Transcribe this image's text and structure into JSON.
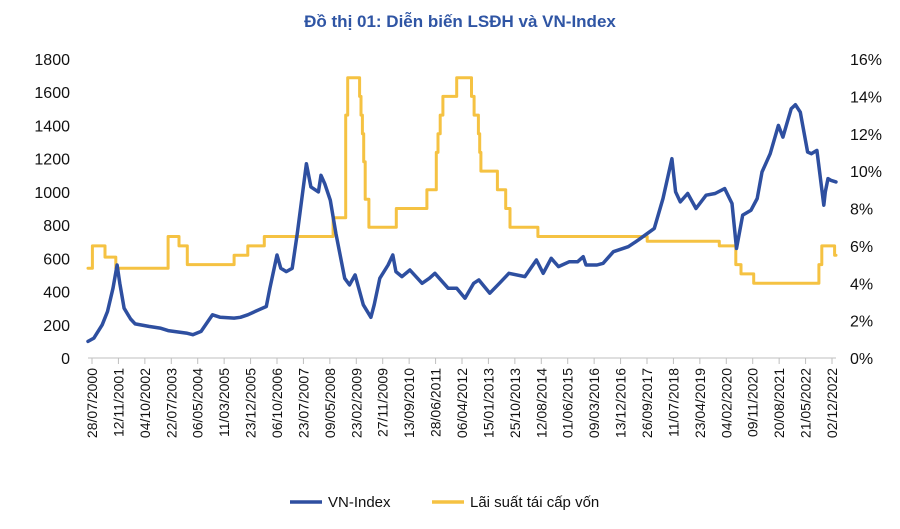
{
  "chart_data": {
    "type": "line",
    "title": "Đồ thị 01: Diễn biến LSĐH và VN-Index",
    "title_color": "#2F55A4",
    "x_tick_labels": [
      "28/07/2000",
      "12/11/2001",
      "04/10/2002",
      "22/07/2003",
      "06/05/2004",
      "11/03/2005",
      "23/12/2005",
      "06/10/2006",
      "23/07/2007",
      "09/05/2008",
      "23/02/2009",
      "27/11/2009",
      "13/09/2010",
      "28/06/2011",
      "06/04/2012",
      "15/01/2013",
      "25/10/2013",
      "12/08/2014",
      "01/06/2015",
      "09/03/2016",
      "13/12/2016",
      "26/09/2017",
      "11/07/2018",
      "23/04/2019",
      "04/02/2020",
      "09/11/2020",
      "20/08/2021",
      "21/05/2022",
      "02/12/2022"
    ],
    "x_range": [
      "2000-07-28",
      "2023-03-31"
    ],
    "y_left": {
      "min": 0,
      "max": 1800,
      "step": 200,
      "tick_labels": [
        "0",
        "200",
        "400",
        "600",
        "800",
        "1000",
        "1200",
        "1400",
        "1600",
        "1800"
      ]
    },
    "y_right": {
      "min": 0,
      "max": 16,
      "step": 2,
      "tick_labels": [
        "0%",
        "2%",
        "4%",
        "6%",
        "8%",
        "10%",
        "12%",
        "14%",
        "16%"
      ]
    },
    "grid": false,
    "legend_position": "bottom",
    "series": [
      {
        "name": "VN-Index",
        "axis": "left",
        "color": "#2E4FA0",
        "points": [
          [
            "2000-07-28",
            100
          ],
          [
            "2000-10-01",
            120
          ],
          [
            "2001-01-01",
            200
          ],
          [
            "2001-03-01",
            280
          ],
          [
            "2001-05-01",
            420
          ],
          [
            "2001-06-15",
            560
          ],
          [
            "2001-07-15",
            450
          ],
          [
            "2001-09-01",
            300
          ],
          [
            "2001-11-12",
            235
          ],
          [
            "2002-01-01",
            205
          ],
          [
            "2002-06-01",
            190
          ],
          [
            "2002-10-04",
            180
          ],
          [
            "2003-01-01",
            165
          ],
          [
            "2003-07-22",
            150
          ],
          [
            "2003-10-01",
            140
          ],
          [
            "2004-01-01",
            160
          ],
          [
            "2004-05-06",
            260
          ],
          [
            "2004-08-01",
            245
          ],
          [
            "2005-01-01",
            240
          ],
          [
            "2005-03-11",
            245
          ],
          [
            "2005-06-01",
            260
          ],
          [
            "2005-10-01",
            290
          ],
          [
            "2005-12-23",
            310
          ],
          [
            "2006-02-01",
            420
          ],
          [
            "2006-04-20",
            620
          ],
          [
            "2006-06-01",
            540
          ],
          [
            "2006-08-01",
            520
          ],
          [
            "2006-10-06",
            540
          ],
          [
            "2006-12-01",
            750
          ],
          [
            "2007-03-12",
            1170
          ],
          [
            "2007-05-01",
            1030
          ],
          [
            "2007-07-23",
            1000
          ],
          [
            "2007-08-20",
            1100
          ],
          [
            "2007-10-01",
            1050
          ],
          [
            "2007-12-01",
            950
          ],
          [
            "2008-02-01",
            750
          ],
          [
            "2008-05-09",
            480
          ],
          [
            "2008-07-01",
            440
          ],
          [
            "2008-09-01",
            500
          ],
          [
            "2008-12-01",
            320
          ],
          [
            "2009-02-23",
            245
          ],
          [
            "2009-04-01",
            320
          ],
          [
            "2009-06-01",
            480
          ],
          [
            "2009-09-01",
            560
          ],
          [
            "2009-10-23",
            620
          ],
          [
            "2009-11-27",
            520
          ],
          [
            "2010-02-01",
            490
          ],
          [
            "2010-05-01",
            530
          ],
          [
            "2010-09-13",
            450
          ],
          [
            "2010-12-01",
            480
          ],
          [
            "2011-02-01",
            510
          ],
          [
            "2011-06-28",
            420
          ],
          [
            "2011-10-01",
            420
          ],
          [
            "2012-01-01",
            360
          ],
          [
            "2012-04-06",
            450
          ],
          [
            "2012-06-01",
            470
          ],
          [
            "2012-10-01",
            390
          ],
          [
            "2013-01-15",
            450
          ],
          [
            "2013-05-01",
            510
          ],
          [
            "2013-10-25",
            490
          ],
          [
            "2014-03-01",
            590
          ],
          [
            "2014-05-15",
            510
          ],
          [
            "2014-08-12",
            600
          ],
          [
            "2014-11-01",
            550
          ],
          [
            "2015-03-01",
            580
          ],
          [
            "2015-06-01",
            580
          ],
          [
            "2015-08-01",
            610
          ],
          [
            "2015-09-01",
            560
          ],
          [
            "2016-01-01",
            560
          ],
          [
            "2016-03-09",
            570
          ],
          [
            "2016-07-01",
            640
          ],
          [
            "2016-12-13",
            670
          ],
          [
            "2017-04-01",
            710
          ],
          [
            "2017-09-26",
            780
          ],
          [
            "2018-01-01",
            960
          ],
          [
            "2018-04-09",
            1200
          ],
          [
            "2018-05-20",
            1000
          ],
          [
            "2018-07-11",
            940
          ],
          [
            "2018-10-01",
            990
          ],
          [
            "2019-01-01",
            900
          ],
          [
            "2019-04-23",
            980
          ],
          [
            "2019-08-01",
            990
          ],
          [
            "2019-11-15",
            1020
          ],
          [
            "2020-02-04",
            930
          ],
          [
            "2020-03-24",
            660
          ],
          [
            "2020-06-01",
            860
          ],
          [
            "2020-09-01",
            890
          ],
          [
            "2020-11-09",
            960
          ],
          [
            "2021-01-01",
            1120
          ],
          [
            "2021-04-01",
            1230
          ],
          [
            "2021-07-01",
            1400
          ],
          [
            "2021-08-20",
            1330
          ],
          [
            "2021-11-20",
            1500
          ],
          [
            "2022-01-05",
            1525
          ],
          [
            "2022-03-01",
            1480
          ],
          [
            "2022-05-21",
            1240
          ],
          [
            "2022-07-01",
            1230
          ],
          [
            "2022-09-01",
            1250
          ],
          [
            "2022-11-16",
            920
          ],
          [
            "2022-12-02",
            1000
          ],
          [
            "2023-01-01",
            1080
          ],
          [
            "2023-02-01",
            1070
          ],
          [
            "2023-03-31",
            1060
          ]
        ]
      },
      {
        "name": "Lãi suất tái cấp vốn",
        "axis": "right",
        "color": "#F5C242",
        "points": [
          [
            "2000-07-28",
            4.8
          ],
          [
            "2000-09-15",
            4.8
          ],
          [
            "2000-09-15",
            6.0
          ],
          [
            "2001-02-01",
            6.0
          ],
          [
            "2001-02-01",
            5.4
          ],
          [
            "2001-06-01",
            5.4
          ],
          [
            "2001-06-01",
            4.8
          ],
          [
            "2003-01-01",
            4.8
          ],
          [
            "2003-01-01",
            6.5
          ],
          [
            "2003-05-01",
            6.5
          ],
          [
            "2003-05-01",
            6.0
          ],
          [
            "2003-08-01",
            6.0
          ],
          [
            "2003-08-01",
            5.0
          ],
          [
            "2005-01-01",
            5.0
          ],
          [
            "2005-01-01",
            5.5
          ],
          [
            "2005-06-01",
            5.5
          ],
          [
            "2005-06-01",
            6.0
          ],
          [
            "2005-12-01",
            6.0
          ],
          [
            "2005-12-01",
            6.5
          ],
          [
            "2008-01-01",
            6.5
          ],
          [
            "2008-01-01",
            7.5
          ],
          [
            "2008-05-20",
            7.5
          ],
          [
            "2008-05-20",
            13.0
          ],
          [
            "2008-06-11",
            13.0
          ],
          [
            "2008-06-11",
            15.0
          ],
          [
            "2008-10-21",
            15.0
          ],
          [
            "2008-10-21",
            14.0
          ],
          [
            "2008-11-05",
            14.0
          ],
          [
            "2008-11-05",
            13.0
          ],
          [
            "2008-11-21",
            13.0
          ],
          [
            "2008-11-21",
            12.0
          ],
          [
            "2008-12-05",
            12.0
          ],
          [
            "2008-12-05",
            10.5
          ],
          [
            "2008-12-22",
            10.5
          ],
          [
            "2008-12-22",
            8.5
          ],
          [
            "2009-02-01",
            8.5
          ],
          [
            "2009-02-01",
            7.0
          ],
          [
            "2009-12-01",
            7.0
          ],
          [
            "2009-12-01",
            8.0
          ],
          [
            "2010-11-05",
            8.0
          ],
          [
            "2010-11-05",
            9.0
          ],
          [
            "2011-02-17",
            9.0
          ],
          [
            "2011-02-17",
            11.0
          ],
          [
            "2011-03-08",
            11.0
          ],
          [
            "2011-03-08",
            12.0
          ],
          [
            "2011-04-01",
            12.0
          ],
          [
            "2011-04-01",
            13.0
          ],
          [
            "2011-05-01",
            13.0
          ],
          [
            "2011-05-01",
            14.0
          ],
          [
            "2011-10-01",
            14.0
          ],
          [
            "2011-10-01",
            15.0
          ],
          [
            "2012-03-13",
            15.0
          ],
          [
            "2012-03-13",
            14.0
          ],
          [
            "2012-04-11",
            14.0
          ],
          [
            "2012-04-11",
            13.0
          ],
          [
            "2012-05-28",
            13.0
          ],
          [
            "2012-05-28",
            12.0
          ],
          [
            "2012-06-11",
            12.0
          ],
          [
            "2012-06-11",
            11.0
          ],
          [
            "2012-06-25",
            11.0
          ],
          [
            "2012-06-25",
            10.0
          ],
          [
            "2012-12-24",
            10.0
          ],
          [
            "2012-12-24",
            9.0
          ],
          [
            "2013-03-26",
            9.0
          ],
          [
            "2013-03-26",
            8.0
          ],
          [
            "2013-05-13",
            8.0
          ],
          [
            "2013-05-13",
            7.0
          ],
          [
            "2014-03-18",
            7.0
          ],
          [
            "2014-03-18",
            6.5
          ],
          [
            "2017-07-10",
            6.5
          ],
          [
            "2017-07-10",
            6.25
          ],
          [
            "2019-09-16",
            6.25
          ],
          [
            "2019-09-16",
            6.0
          ],
          [
            "2020-03-17",
            6.0
          ],
          [
            "2020-03-17",
            5.0
          ],
          [
            "2020-05-13",
            5.0
          ],
          [
            "2020-05-13",
            4.5
          ],
          [
            "2020-10-01",
            4.5
          ],
          [
            "2020-10-01",
            4.0
          ],
          [
            "2022-09-23",
            4.0
          ],
          [
            "2022-09-23",
            5.0
          ],
          [
            "2022-10-25",
            5.0
          ],
          [
            "2022-10-25",
            6.0
          ],
          [
            "2023-03-15",
            6.0
          ],
          [
            "2023-03-15",
            5.5
          ],
          [
            "2023-03-31",
            5.5
          ]
        ]
      }
    ]
  }
}
